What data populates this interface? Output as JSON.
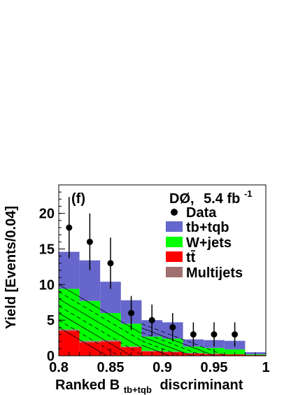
{
  "chart_data": {
    "type": "bar",
    "stacked": true,
    "panel_label": "(f)",
    "experiment": "DØ,",
    "luminosity": "5.4 fb",
    "luminosity_exp": "-1",
    "xlabel_main": "Ranked B",
    "xlabel_sub": "tb+tqb",
    "xlabel_tail": "discriminant",
    "ylabel": "Yield [Events/0.04]",
    "xlim": [
      0.8,
      1.0
    ],
    "ylim": [
      0,
      24
    ],
    "bin_edges": [
      0.8,
      0.82,
      0.84,
      0.86,
      0.88,
      0.9,
      0.92,
      0.94,
      0.96,
      0.98,
      1.0
    ],
    "xticks": [
      "0.8",
      "0.85",
      "0.9",
      "0.95",
      "1"
    ],
    "xtick_values": [
      0.8,
      0.85,
      0.9,
      0.95,
      1.0
    ],
    "yticks": [
      "0",
      "5",
      "10",
      "15",
      "20"
    ],
    "ytick_values": [
      0,
      5,
      10,
      15,
      20
    ],
    "stack": [
      {
        "name": "tt̄",
        "color": "#ff0000",
        "values": [
          3.5,
          1.9,
          2.0,
          1.2,
          0.6,
          0.5,
          0.3,
          0.2,
          0.2,
          0.1
        ]
      },
      {
        "name": "Multijets",
        "color": "#a07070",
        "values": [
          0.2,
          0.2,
          0.2,
          0.1,
          0.1,
          0.1,
          0.1,
          0.1,
          0.0,
          0.0
        ]
      },
      {
        "name": "W+jets",
        "color": "#00ff00",
        "values": [
          5.7,
          5.6,
          3.8,
          3.2,
          2.0,
          1.8,
          0.9,
          0.8,
          0.7,
          0.1
        ]
      },
      {
        "name": "tb+tqb",
        "color": "#6666cc",
        "values": [
          5.2,
          5.7,
          4.4,
          3.3,
          2.3,
          2.3,
          1.0,
          1.1,
          1.2,
          0.3
        ]
      }
    ],
    "data": {
      "name": "Data",
      "x": [
        0.81,
        0.83,
        0.85,
        0.87,
        0.89,
        0.91,
        0.93,
        0.95,
        0.97
      ],
      "y": [
        18,
        16,
        13,
        6,
        5,
        4,
        3,
        3,
        3
      ],
      "err_hi": [
        4.3,
        4.0,
        3.6,
        2.4,
        2.2,
        2.0,
        1.7,
        1.7,
        1.7
      ],
      "err_lo": [
        4.3,
        4.0,
        3.6,
        2.4,
        2.2,
        2.0,
        1.7,
        1.7,
        1.7
      ]
    },
    "uncertainty_band": "hatched",
    "legend": [
      {
        "label": "Data",
        "marker": "point"
      },
      {
        "label": "tb+tqb",
        "color": "#6666cc"
      },
      {
        "label": "W+jets",
        "color": "#00ff00"
      },
      {
        "label": "tt̄",
        "color": "#ff0000"
      },
      {
        "label": "Multijets",
        "color": "#a07070"
      }
    ],
    "legend_position": "top-right"
  }
}
